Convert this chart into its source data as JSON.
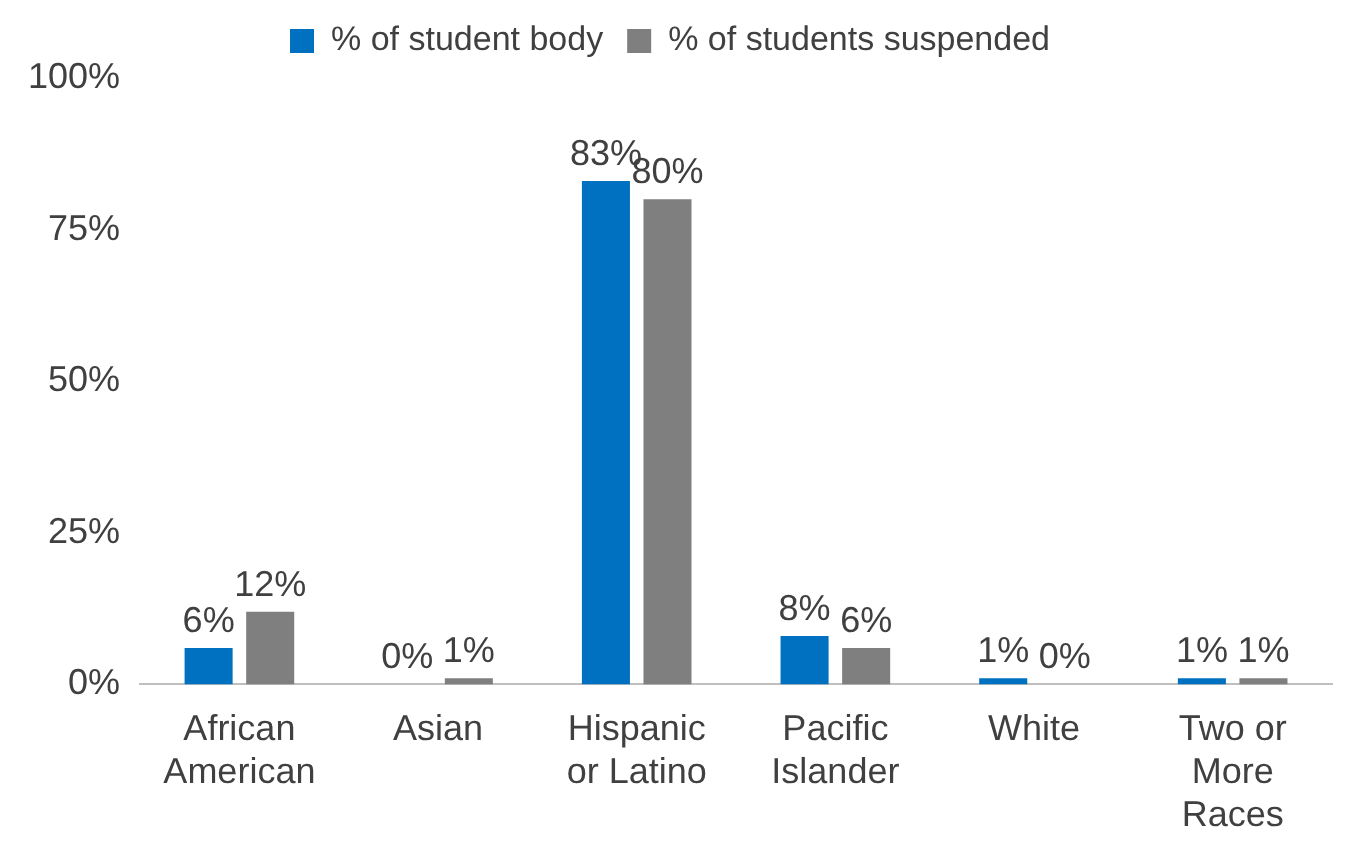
{
  "chart_data": {
    "type": "bar",
    "categories": [
      "African American",
      "Asian",
      "Hispanic or Latino",
      "Pacific Islander",
      "White",
      "Two or More Races"
    ],
    "series": [
      {
        "name": "% of student body",
        "color": "#0070c0",
        "values": [
          6,
          0,
          83,
          8,
          1,
          1
        ],
        "value_labels": [
          "6%",
          "0%",
          "83%",
          "8%",
          "1%",
          "1%"
        ]
      },
      {
        "name": "% of students suspended",
        "color": "#7f7f7f",
        "values": [
          12,
          1,
          80,
          6,
          0,
          1
        ],
        "value_labels": [
          "12%",
          "1%",
          "80%",
          "6%",
          "0%",
          "1%"
        ]
      }
    ],
    "ylim": [
      0,
      100
    ],
    "yticks": [
      {
        "value": 0,
        "label": "0%"
      },
      {
        "value": 25,
        "label": "25%"
      },
      {
        "value": 50,
        "label": "50%"
      },
      {
        "value": 75,
        "label": "75%"
      },
      {
        "value": 100,
        "label": "100%"
      }
    ],
    "grid": false,
    "legend": "top"
  }
}
